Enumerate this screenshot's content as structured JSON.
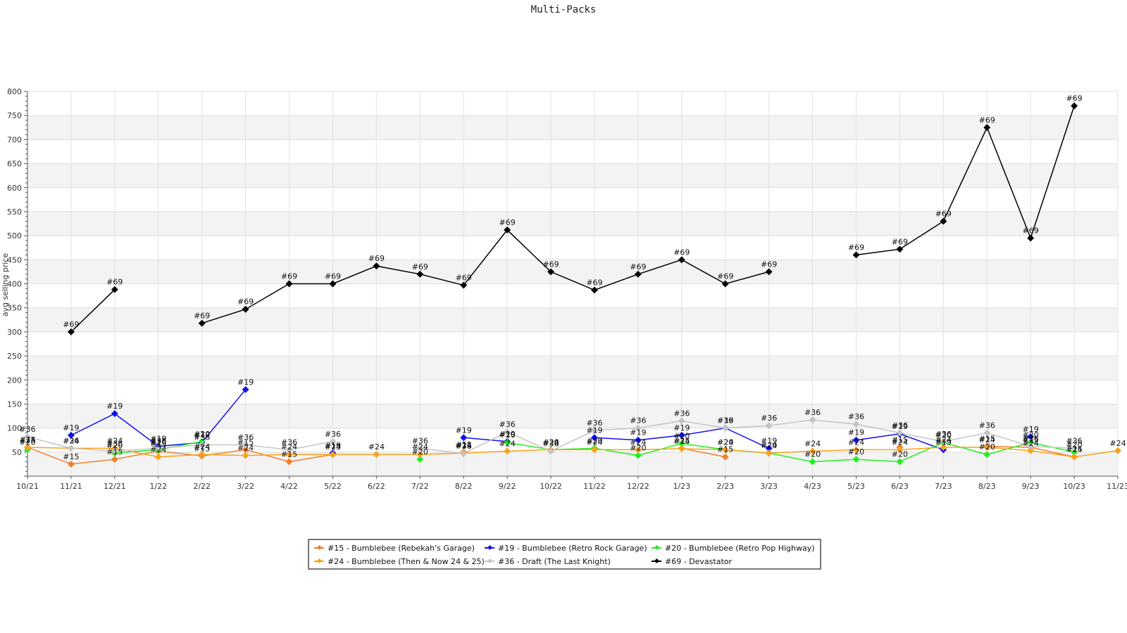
{
  "chart_data": {
    "type": "line",
    "title": "Multi-Packs",
    "ylabel": "avg selling price",
    "xlabel": "",
    "ylim": [
      0,
      800
    ],
    "yticks": [
      50,
      100,
      150,
      200,
      250,
      300,
      350,
      400,
      450,
      500,
      550,
      600,
      650,
      700,
      750,
      800
    ],
    "categories": [
      "10/21",
      "11/21",
      "12/21",
      "1/22",
      "2/22",
      "3/22",
      "4/22",
      "5/22",
      "6/22",
      "7/22",
      "8/22",
      "9/22",
      "10/22",
      "11/22",
      "12/22",
      "1/23",
      "2/23",
      "3/23",
      "4/23",
      "5/23",
      "6/23",
      "7/23",
      "8/23",
      "9/23",
      "10/23",
      "11/23"
    ],
    "grid": true,
    "legend_position": "bottom-center",
    "series": [
      {
        "name": "#15 - Bumblebee (Rebekah's Garage)",
        "label": "#15",
        "color": "#f07f2a",
        "values": [
          60,
          25,
          35,
          52,
          42,
          55,
          30,
          45,
          null,
          null,
          50,
          null,
          null,
          null,
          null,
          58,
          40,
          null,
          null,
          null,
          60,
          null,
          62,
          60,
          40,
          null
        ]
      },
      {
        "name": "#19 - Bumblebee (Retro Rock Garage)",
        "label": "#19",
        "color": "#1010ee",
        "values": [
          null,
          85,
          130,
          62,
          70,
          180,
          null,
          48,
          null,
          null,
          80,
          72,
          null,
          80,
          75,
          85,
          100,
          58,
          null,
          75,
          88,
          55,
          null,
          82,
          null,
          null
        ]
      },
      {
        "name": "#20 - Bumblebee (Retro Pop Highway)",
        "label": "#20",
        "color": "#22ee22",
        "values": [
          55,
          null,
          48,
          55,
          72,
          null,
          null,
          null,
          null,
          35,
          null,
          70,
          55,
          58,
          43,
          68,
          55,
          48,
          30,
          35,
          30,
          70,
          45,
          70,
          50,
          null
        ]
      },
      {
        "name": "#24 - Bumblebee (Then & Now 24 & 25)",
        "label": "#24",
        "color": "#f7a21b",
        "values": [
          60,
          58,
          58,
          40,
          45,
          43,
          45,
          45,
          45,
          45,
          48,
          52,
          55,
          55,
          55,
          57,
          55,
          48,
          52,
          55,
          55,
          60,
          60,
          53,
          40,
          53
        ]
      },
      {
        "name": "#36 - Draft (The Last Knight)",
        "label": "#36",
        "color": "#c4c4c4",
        "values": [
          82,
          58,
          52,
          58,
          65,
          65,
          55,
          72,
          null,
          58,
          47,
          92,
          52,
          95,
          100,
          115,
          100,
          105,
          117,
          108,
          90,
          72,
          90,
          62,
          58,
          null
        ]
      },
      {
        "name": "#69 - Devastator",
        "label": "#69",
        "color": "#000000",
        "values": [
          null,
          300,
          388,
          null,
          318,
          347,
          400,
          400,
          437,
          420,
          397,
          512,
          425,
          387,
          420,
          450,
          400,
          425,
          null,
          460,
          472,
          530,
          725,
          495,
          770,
          null
        ]
      }
    ]
  }
}
